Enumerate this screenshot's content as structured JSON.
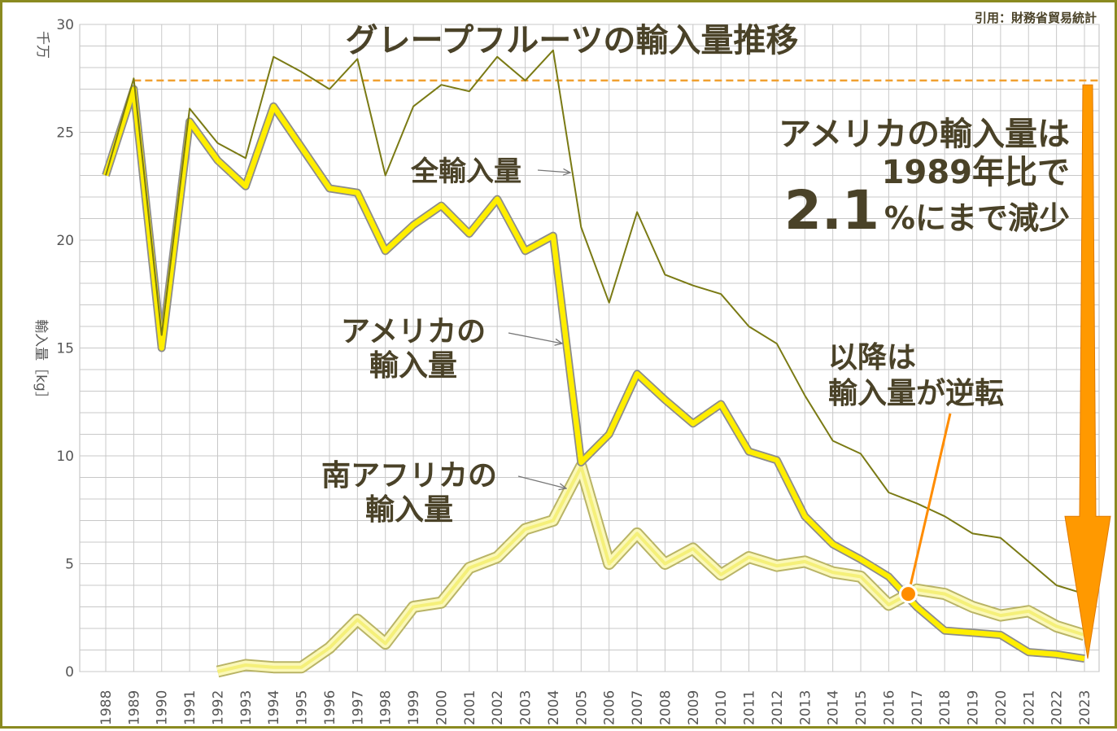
{
  "chart_data": {
    "type": "line",
    "title": "グレープフルーツの輸入量推移",
    "source": "引用：財務省貿易統計",
    "ylabel": "輸入量［kg］",
    "yunit": "千万",
    "ylim": [
      0,
      30
    ],
    "yticks": [
      0,
      5,
      10,
      15,
      20,
      25,
      30
    ],
    "grid": true,
    "x": [
      "1988",
      "1989",
      "1990",
      "1991",
      "1992",
      "1993",
      "1994",
      "1995",
      "1996",
      "1997",
      "1998",
      "1999",
      "2000",
      "2001",
      "2002",
      "2003",
      "2004",
      "2005",
      "2006",
      "2007",
      "2008",
      "2009",
      "2010",
      "2011",
      "2012",
      "2013",
      "2014",
      "2015",
      "2016",
      "2017",
      "2018",
      "2019",
      "2020",
      "2021",
      "2022",
      "2023"
    ],
    "series": [
      {
        "name": "全輸入量",
        "values": [
          23.0,
          27.5,
          15.6,
          26.1,
          24.5,
          23.8,
          28.5,
          27.8,
          27.0,
          28.4,
          23.0,
          26.2,
          27.2,
          26.9,
          28.5,
          27.4,
          28.8,
          20.6,
          17.1,
          21.3,
          18.4,
          17.9,
          17.5,
          16.0,
          15.2,
          12.8,
          10.7,
          10.1,
          8.3,
          7.8,
          7.2,
          6.4,
          6.2,
          5.1,
          4.0,
          3.6
        ],
        "color": "#7a7a14"
      },
      {
        "name": "アメリカの輸入量",
        "values": [
          23.0,
          27.0,
          15.0,
          25.5,
          23.7,
          22.5,
          26.2,
          24.3,
          22.4,
          22.2,
          19.5,
          20.7,
          21.6,
          20.3,
          21.9,
          19.5,
          20.2,
          9.7,
          11.0,
          13.8,
          12.6,
          11.5,
          12.4,
          10.2,
          9.8,
          7.2,
          5.9,
          5.2,
          4.4,
          3.0,
          1.9,
          1.8,
          1.7,
          0.9,
          0.8,
          0.6
        ],
        "color": "#ffee00"
      },
      {
        "name": "南アフリカの輸入量",
        "values": [
          null,
          null,
          null,
          null,
          0.0,
          0.3,
          0.2,
          0.2,
          1.1,
          2.4,
          1.3,
          3.0,
          3.2,
          4.8,
          5.3,
          6.6,
          7.0,
          9.5,
          5.0,
          6.4,
          5.0,
          5.7,
          4.5,
          5.3,
          4.9,
          5.1,
          4.6,
          4.4,
          3.1,
          3.8,
          3.6,
          3.0,
          2.6,
          2.8,
          2.1,
          1.7
        ],
        "color": "#f5f07a"
      }
    ],
    "reference_line": {
      "value": 27.4,
      "color": "#f0a030"
    },
    "annotations": {
      "total_label": "全輸入量",
      "us_label_1": "アメリカの",
      "us_label_2": "輸入量",
      "sa_label_1": "南アフリカの",
      "sa_label_2": "輸入量",
      "headline_1": "アメリカの輸入量は",
      "headline_2": "1989年比で",
      "headline_big": "2.1",
      "headline_tail": "%にまで減少",
      "crossover_1": "以降は",
      "crossover_2": "輸入量が逆転"
    },
    "colors": {
      "arrow": "#ff9900",
      "marker": "#ff8c00",
      "frame": "#8a8a20",
      "text": "#4a4228"
    }
  }
}
